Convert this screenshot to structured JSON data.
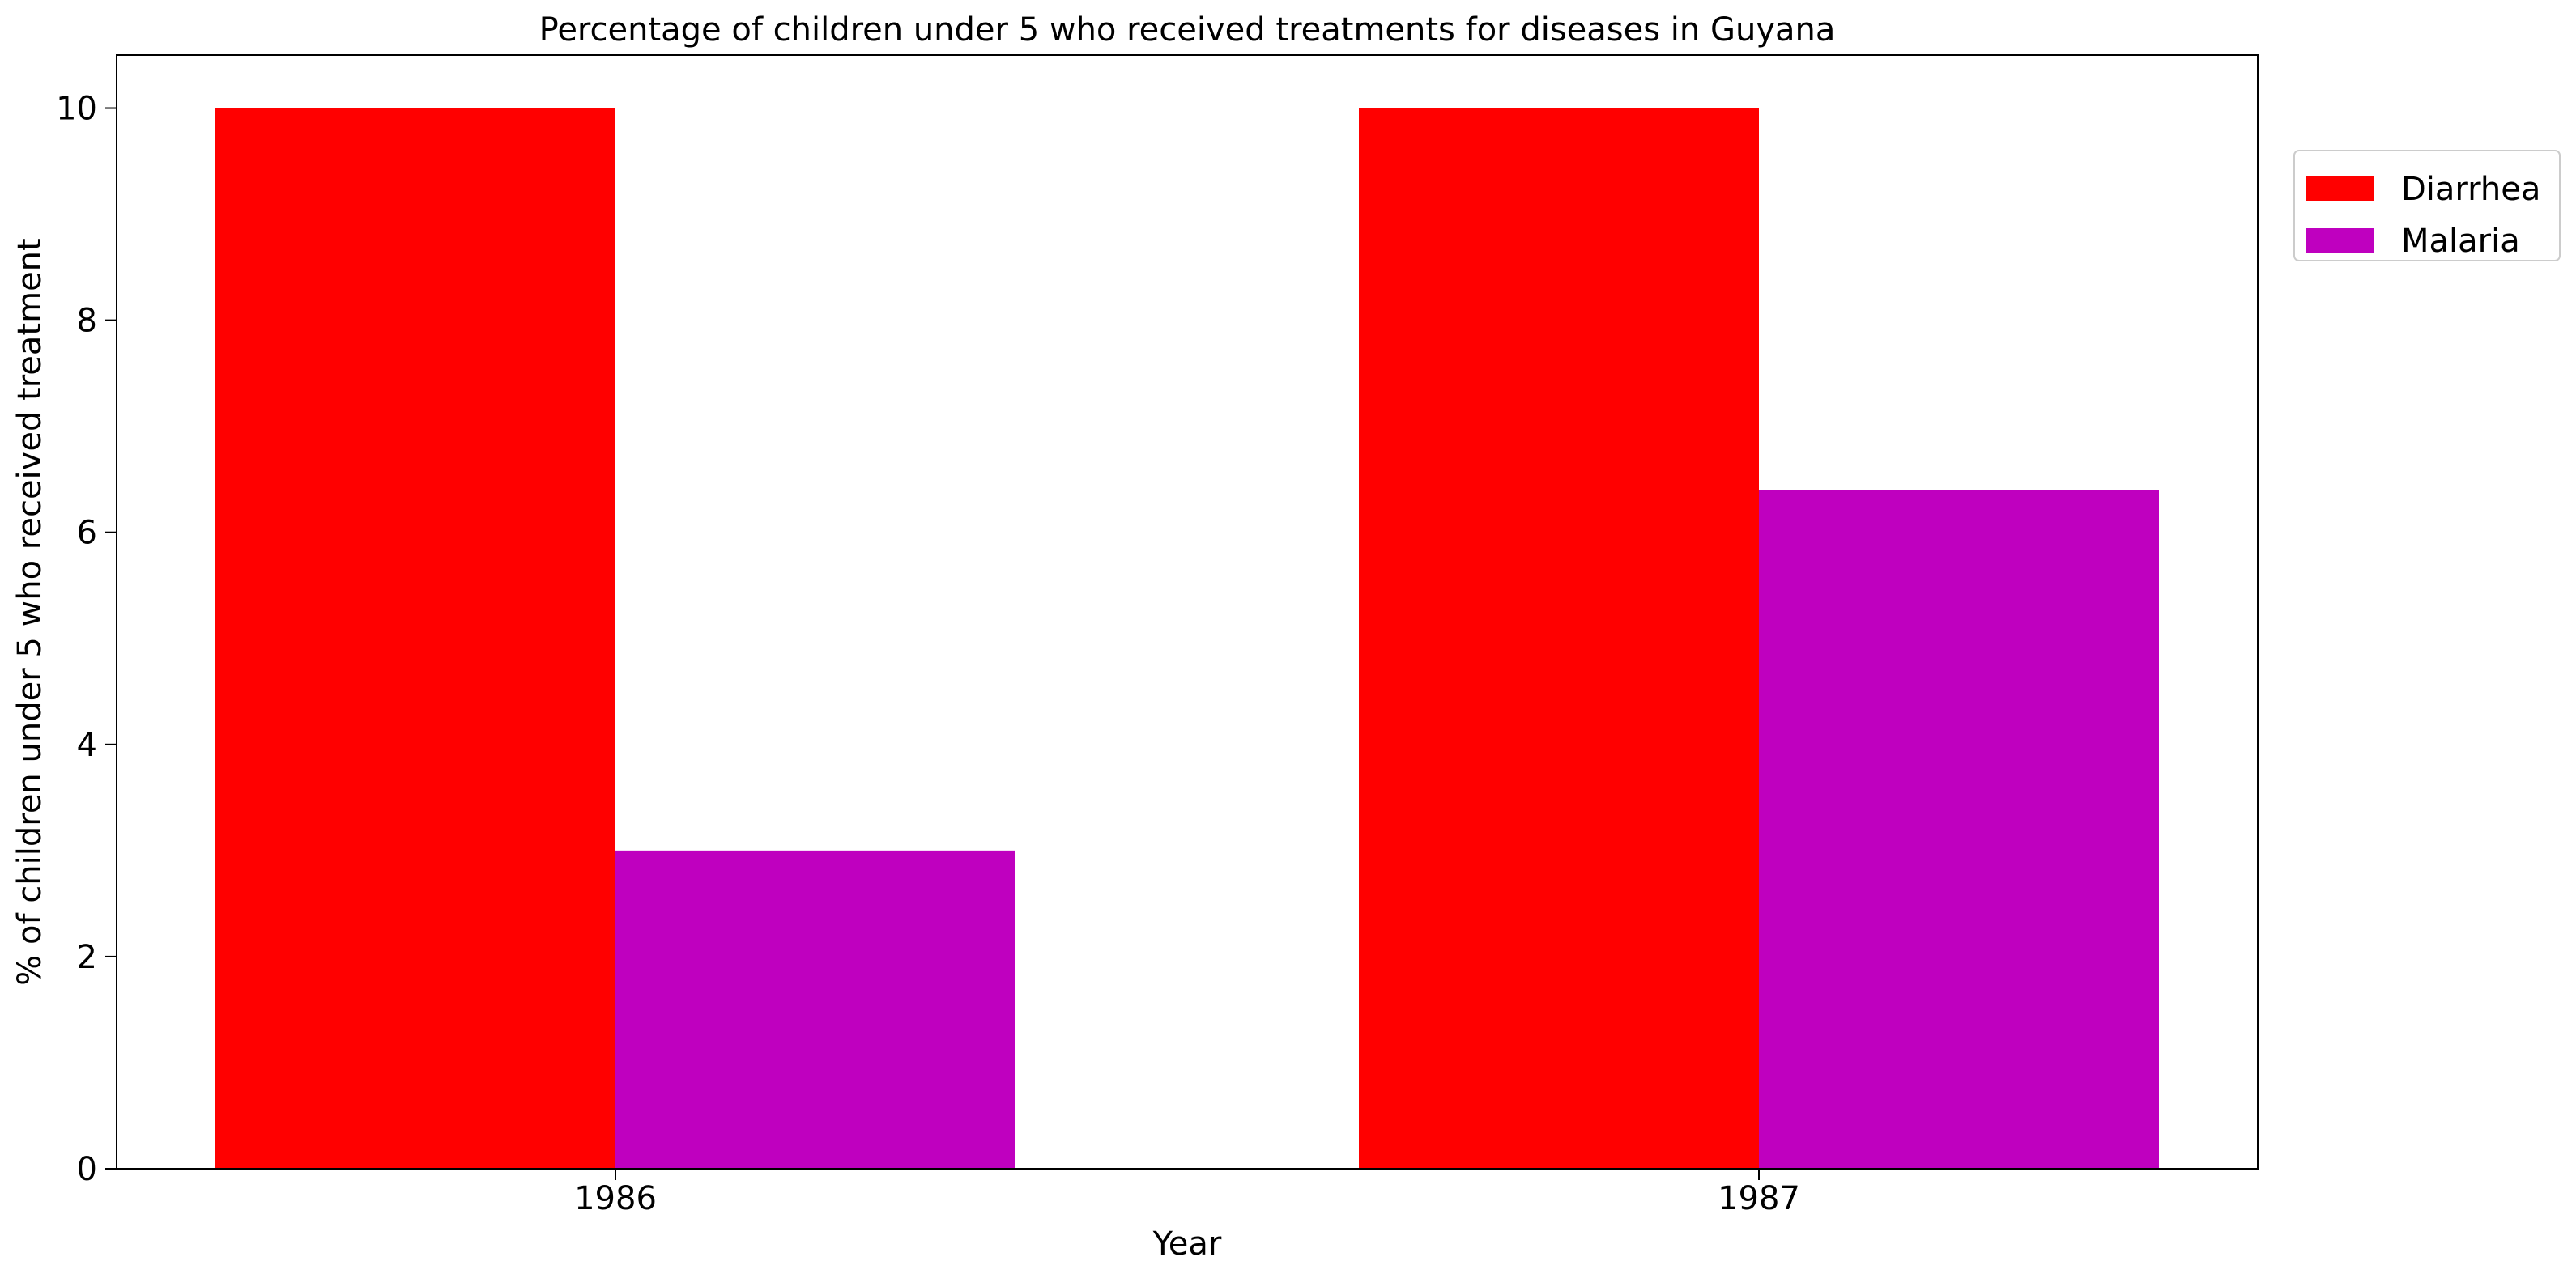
{
  "chart_data": {
    "type": "bar",
    "title": "Percentage of children under 5 who received treatments for diseases in Guyana",
    "xlabel": "Year",
    "ylabel": "% of children under 5 who received treatment",
    "categories": [
      "1986",
      "1987"
    ],
    "series": [
      {
        "name": "Diarrhea",
        "values": [
          10,
          10
        ],
        "color": "#ff0000"
      },
      {
        "name": "Malaria",
        "values": [
          3,
          6.4
        ],
        "color": "#bf00bf"
      }
    ],
    "ylim": [
      0,
      10.5
    ],
    "yticks": [
      0,
      2,
      4,
      6,
      8,
      10
    ],
    "grid": false,
    "legend_position": "right, outside plot, top"
  }
}
